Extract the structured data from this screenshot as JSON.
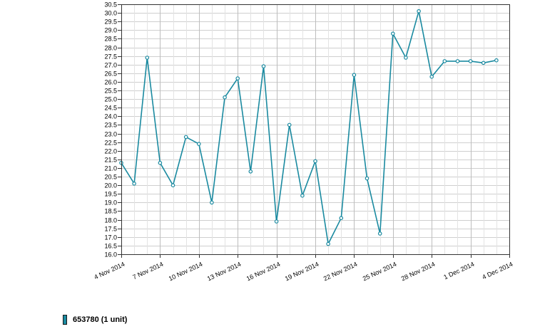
{
  "chart_data": {
    "type": "line",
    "title": "",
    "xlabel": "",
    "ylabel": "",
    "ylim": [
      16.0,
      30.5
    ],
    "ystep": 0.5,
    "xlim": [
      "2014-11-04",
      "2014-12-04"
    ],
    "x_tick_labels": [
      "4 Nov 2014",
      "7 Nov 2014",
      "10 Nov 2014",
      "13 Nov 2014",
      "16 Nov 2014",
      "19 Nov 2014",
      "22 Nov 2014",
      "25 Nov 2014",
      "28 Nov 2014",
      "1 Dec 2014",
      "4 Dec 2014"
    ],
    "x_tick_dates": [
      "2014-11-04",
      "2014-11-07",
      "2014-11-10",
      "2014-11-13",
      "2014-11-16",
      "2014-11-19",
      "2014-11-22",
      "2014-11-25",
      "2014-11-28",
      "2014-12-01",
      "2014-12-04"
    ],
    "grid": true,
    "legend_position": "bottom-left",
    "series": [
      {
        "name": "653780 (1 unit)",
        "color": "#1a8aa0",
        "x": [
          "2014-11-04",
          "2014-11-05",
          "2014-11-06",
          "2014-11-07",
          "2014-11-08",
          "2014-11-09",
          "2014-11-10",
          "2014-11-11",
          "2014-11-12",
          "2014-11-13",
          "2014-11-14",
          "2014-11-15",
          "2014-11-16",
          "2014-11-17",
          "2014-11-18",
          "2014-11-19",
          "2014-11-20",
          "2014-11-21",
          "2014-11-22",
          "2014-11-23",
          "2014-11-24",
          "2014-11-25",
          "2014-11-26",
          "2014-11-27",
          "2014-11-28",
          "2014-11-29",
          "2014-11-30",
          "2014-12-01",
          "2014-12-02",
          "2014-12-03"
        ],
        "y": [
          21.3,
          20.1,
          27.4,
          21.3,
          20.0,
          22.8,
          22.4,
          19.0,
          25.1,
          26.2,
          20.8,
          26.9,
          17.9,
          23.5,
          19.4,
          21.4,
          16.6,
          18.1,
          26.4,
          20.4,
          17.2,
          28.8,
          27.4,
          30.1,
          26.3,
          27.2,
          27.2,
          27.2,
          27.1,
          27.25
        ]
      }
    ]
  },
  "legend": {
    "label": "653780 (1 unit)",
    "swatch_color": "#1a8aa0"
  }
}
